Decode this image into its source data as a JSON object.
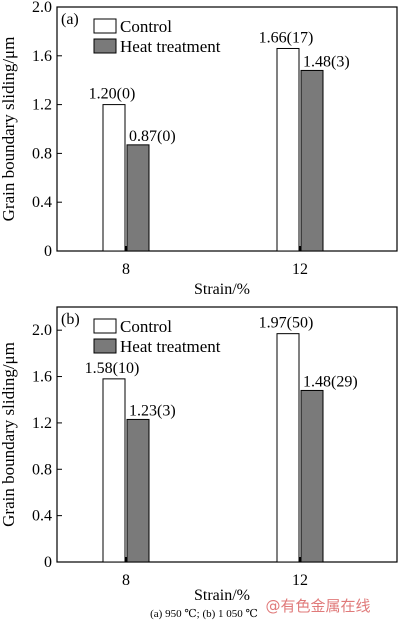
{
  "chart_data": [
    {
      "type": "bar",
      "panel_label": "(a)",
      "categories": [
        "8",
        "12"
      ],
      "series": [
        {
          "name": "Control",
          "values": [
            1.2,
            1.66
          ],
          "labels": [
            "1.20(0)",
            "1.66(17)"
          ]
        },
        {
          "name": "Heat treatment",
          "values": [
            0.87,
            1.48
          ],
          "labels": [
            "0.87(0)",
            "1.48(3)"
          ]
        }
      ],
      "xlabel": "Strain/%",
      "ylabel": "Grain boundary sliding/μm",
      "ylim": [
        0,
        2.0
      ],
      "yticks": [
        "0",
        "0.4",
        "0.8",
        "1.2",
        "1.6",
        "2.0"
      ],
      "legend_position": "top-left",
      "grid": false
    },
    {
      "type": "bar",
      "panel_label": "(b)",
      "categories": [
        "8",
        "12"
      ],
      "series": [
        {
          "name": "Control",
          "values": [
            1.58,
            1.97
          ],
          "labels": [
            "1.58(10)",
            "1.97(50)"
          ]
        },
        {
          "name": "Heat treatment",
          "values": [
            1.23,
            1.48
          ],
          "labels": [
            "1.23(3)",
            "1.48(29)"
          ]
        }
      ],
      "xlabel": "Strain/%",
      "ylabel": "Grain boundary sliding/μm",
      "ylim": [
        0,
        2.2
      ],
      "yticks": [
        "0",
        "0.4",
        "0.8",
        "1.2",
        "1.6",
        "2.0"
      ],
      "legend_position": "top-left",
      "grid": false
    }
  ],
  "colors": {
    "control": "#ffffff",
    "heat_treatment": "#7a7a7a",
    "axis": "#000000"
  },
  "caption": "(a) 950 ℃; (b) 1 050 ℃",
  "watermark": "@有色金属在线"
}
